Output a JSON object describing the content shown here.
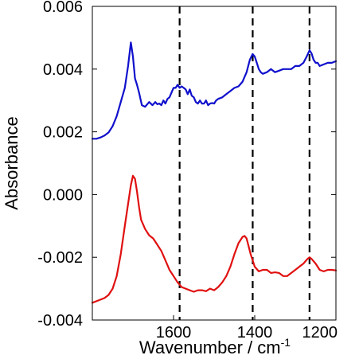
{
  "chart_data": {
    "type": "line",
    "title": "",
    "xlabel": "Wavenumber / cm",
    "xlabel_superscript": "-1",
    "ylabel": "Absorbance",
    "xlim": [
      1800,
      1200
    ],
    "ylim": [
      -0.004,
      0.006
    ],
    "x_reversed": true,
    "x_ticks": [
      1600,
      1400,
      1200
    ],
    "x_tick_labels": [
      "1600",
      "1400",
      "1200"
    ],
    "y_ticks": [
      -0.004,
      -0.002,
      0.0,
      0.002,
      0.004,
      0.006
    ],
    "y_tick_labels": [
      "-0.004",
      "-0.002",
      "0.000",
      "0.002",
      "0.004",
      "0.006"
    ],
    "dashed_vlines": [
      1585,
      1405,
      1265
    ],
    "grid": false,
    "legend": false,
    "series": [
      {
        "color": "#1010cc",
        "x": [
          1800,
          1790,
          1780,
          1770,
          1760,
          1750,
          1740,
          1730,
          1720,
          1712,
          1705,
          1700,
          1695,
          1690,
          1685,
          1678,
          1670,
          1660,
          1652,
          1645,
          1640,
          1635,
          1630,
          1625,
          1620,
          1615,
          1610,
          1605,
          1600,
          1595,
          1590,
          1585,
          1580,
          1575,
          1570,
          1565,
          1560,
          1555,
          1550,
          1545,
          1540,
          1535,
          1530,
          1525,
          1520,
          1515,
          1510,
          1505,
          1500,
          1495,
          1490,
          1480,
          1470,
          1460,
          1450,
          1440,
          1430,
          1420,
          1412,
          1405,
          1400,
          1395,
          1390,
          1385,
          1380,
          1370,
          1360,
          1350,
          1340,
          1330,
          1320,
          1310,
          1300,
          1290,
          1280,
          1272,
          1265,
          1260,
          1255,
          1250,
          1245,
          1240,
          1230,
          1220,
          1210,
          1200
        ],
        "values": [
          0.00178,
          0.00178,
          0.00182,
          0.00188,
          0.00198,
          0.00218,
          0.0025,
          0.00295,
          0.0034,
          0.0041,
          0.00485,
          0.0044,
          0.0037,
          0.0035,
          0.00325,
          0.00285,
          0.0028,
          0.00295,
          0.00285,
          0.00295,
          0.00288,
          0.0029,
          0.00285,
          0.003,
          0.0029,
          0.00305,
          0.0031,
          0.00325,
          0.0034,
          0.0034,
          0.0035,
          0.0034,
          0.00345,
          0.0034,
          0.00335,
          0.0032,
          0.00335,
          0.00315,
          0.0031,
          0.00295,
          0.0029,
          0.003,
          0.0029,
          0.0029,
          0.003,
          0.00285,
          0.0029,
          0.00292,
          0.0029,
          0.003,
          0.00305,
          0.0031,
          0.0032,
          0.0033,
          0.0034,
          0.00345,
          0.0036,
          0.0039,
          0.0043,
          0.00448,
          0.0044,
          0.0042,
          0.004,
          0.0039,
          0.00385,
          0.0039,
          0.004,
          0.0039,
          0.00395,
          0.004,
          0.004,
          0.004,
          0.0041,
          0.0041,
          0.0042,
          0.0044,
          0.0046,
          0.0045,
          0.0043,
          0.0042,
          0.0042,
          0.0041,
          0.00415,
          0.0042,
          0.0042,
          0.00425
        ]
      },
      {
        "color": "#e01010",
        "x": [
          1800,
          1790,
          1780,
          1770,
          1760,
          1750,
          1740,
          1730,
          1720,
          1712,
          1705,
          1700,
          1695,
          1690,
          1685,
          1680,
          1670,
          1660,
          1650,
          1640,
          1630,
          1620,
          1610,
          1600,
          1590,
          1580,
          1570,
          1560,
          1550,
          1540,
          1530,
          1520,
          1510,
          1500,
          1490,
          1480,
          1470,
          1460,
          1450,
          1440,
          1430,
          1425,
          1420,
          1410,
          1400,
          1390,
          1380,
          1370,
          1360,
          1350,
          1340,
          1330,
          1320,
          1310,
          1300,
          1290,
          1280,
          1270,
          1265,
          1260,
          1250,
          1240,
          1230,
          1220,
          1210,
          1200
        ],
        "values": [
          -0.00345,
          -0.0034,
          -0.00335,
          -0.0033,
          -0.0032,
          -0.003,
          -0.0026,
          -0.0019,
          -0.001,
          -0.0003,
          0.0003,
          0.0006,
          0.0005,
          0.0001,
          -0.0004,
          -0.0008,
          -0.0011,
          -0.0013,
          -0.0014,
          -0.0016,
          -0.0018,
          -0.0021,
          -0.0024,
          -0.0026,
          -0.0028,
          -0.00295,
          -0.003,
          -0.00305,
          -0.0031,
          -0.00305,
          -0.00305,
          -0.00308,
          -0.003,
          -0.00305,
          -0.00295,
          -0.0028,
          -0.0026,
          -0.0023,
          -0.0019,
          -0.00155,
          -0.00135,
          -0.00132,
          -0.0014,
          -0.0019,
          -0.0023,
          -0.00245,
          -0.0024,
          -0.0024,
          -0.0025,
          -0.00248,
          -0.0025,
          -0.0026,
          -0.0026,
          -0.0025,
          -0.0024,
          -0.0023,
          -0.0022,
          -0.00205,
          -0.002,
          -0.00205,
          -0.0022,
          -0.0024,
          -0.00245,
          -0.0024,
          -0.0024,
          -0.00242
        ]
      }
    ]
  }
}
